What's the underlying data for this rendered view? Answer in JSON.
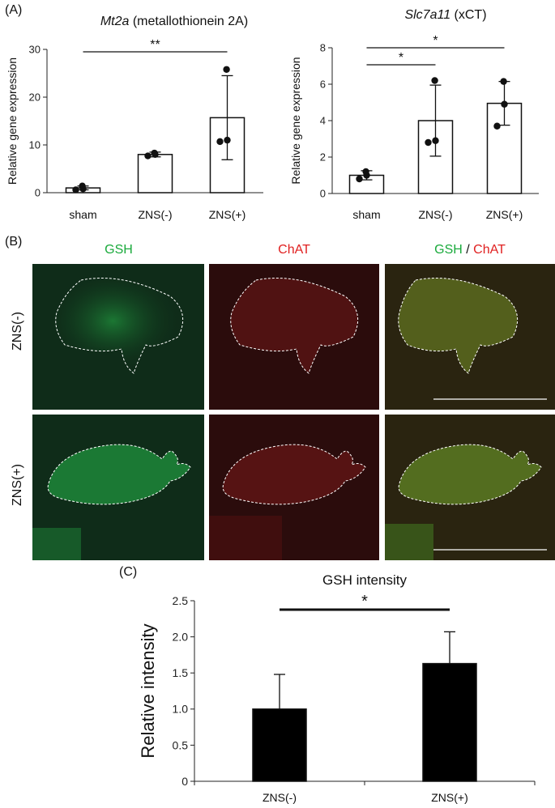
{
  "panels": {
    "a_label": "(A)",
    "b_label": "(B)",
    "c_label": "(C)"
  },
  "chart_data": [
    {
      "type": "bar",
      "title_italic": "Mt2a",
      "title_rest": " (metallothionein 2A)",
      "ylabel": "Relative gene expression",
      "categories": [
        "sham",
        "ZNS(-)",
        "ZNS(+)"
      ],
      "values": [
        1.0,
        8.0,
        15.7
      ],
      "errors": [
        0.4,
        0.5,
        8.8
      ],
      "points": [
        [
          0.6,
          0.8,
          1.4
        ],
        [
          7.7,
          8.0,
          8.3
        ],
        [
          10.7,
          11.0,
          25.8
        ]
      ],
      "ylim": [
        0,
        30
      ],
      "yticks": [
        0,
        10,
        20,
        30
      ],
      "significance": [
        {
          "from": 0,
          "to": 2,
          "label": "**"
        }
      ]
    },
    {
      "type": "bar",
      "title_italic": "Slc7a11",
      "title_rest": " (xCT)",
      "ylabel": "Relative gene expression",
      "categories": [
        "sham",
        "ZNS(-)",
        "ZNS(+)"
      ],
      "values": [
        1.0,
        4.0,
        4.95
      ],
      "errors": [
        0.25,
        1.95,
        1.2
      ],
      "points": [
        [
          0.8,
          1.0,
          1.2
        ],
        [
          2.8,
          2.9,
          6.2
        ],
        [
          3.7,
          4.9,
          6.15
        ]
      ],
      "ylim": [
        0,
        8
      ],
      "yticks": [
        0,
        2,
        4,
        6,
        8
      ],
      "significance": [
        {
          "from": 0,
          "to": 1,
          "label": "*"
        },
        {
          "from": 0,
          "to": 2,
          "label": "*"
        }
      ]
    },
    {
      "type": "bar",
      "title": "GSH intensity",
      "ylabel": "Relative intensity",
      "categories": [
        "ZNS(-)",
        "ZNS(+)"
      ],
      "values": [
        1.0,
        1.63
      ],
      "errors": [
        0.48,
        0.44
      ],
      "ylim": [
        0,
        2.5
      ],
      "yticks": [
        0,
        0.5,
        1.0,
        1.5,
        2.0,
        2.5
      ],
      "ytick_labels": [
        "0",
        "0.5",
        "1.0",
        "1.5",
        "2.0",
        "2.5"
      ],
      "significance": [
        {
          "from": 0,
          "to": 1,
          "label": "*"
        }
      ]
    }
  ],
  "micrographs": {
    "col_labels": {
      "gsh": "GSH",
      "chat": "ChAT",
      "merge_gsh": "GSH",
      "merge_sep": " / ",
      "merge_chat": "ChAT"
    },
    "row_labels": [
      "ZNS(-)",
      "ZNS(+)"
    ],
    "colors": {
      "green": "#1aaa3c",
      "red": "#e02020"
    }
  }
}
